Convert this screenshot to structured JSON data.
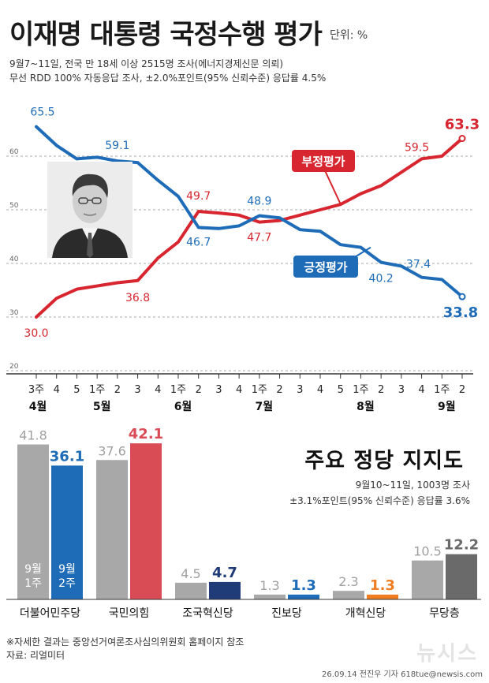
{
  "header": {
    "title": "이재명 대통령 국정수행 평가",
    "unit": "단위: %",
    "subtitle_1": "9월7~11일, 전국 만 18세 이상 2515명 조사(에너지경제신문 의뢰)",
    "subtitle_2": "무선 RDD 100% 자동응답 조사, ±2.0%포인트(95% 신뢰수준) 응답률 4.5%"
  },
  "chart_data": [
    {
      "type": "line",
      "y_ticks": [
        20,
        30,
        40,
        50,
        60
      ],
      "ylim": [
        20,
        70
      ],
      "x": [
        "3주",
        "4",
        "5",
        "1주",
        "2",
        "3",
        "4",
        "1주",
        "2",
        "3",
        "4",
        "1주",
        "2",
        "3",
        "4",
        "5",
        "1주",
        "2",
        "3",
        "4",
        "1주",
        "2"
      ],
      "month_labels": [
        {
          "label": "4월",
          "index": 0
        },
        {
          "label": "5월",
          "index": 3
        },
        {
          "label": "6월",
          "index": 7
        },
        {
          "label": "7월",
          "index": 11
        },
        {
          "label": "8월",
          "index": 16
        },
        {
          "label": "9월",
          "index": 20
        }
      ],
      "series": [
        {
          "name": "부정평가",
          "color": "#d7262f",
          "values": [
            30.0,
            33.5,
            35.2,
            35.8,
            36.4,
            36.8,
            41.0,
            44.0,
            49.7,
            49.4,
            49.0,
            47.7,
            48.0,
            49.0,
            50.0,
            51.0,
            53.0,
            54.5,
            57.0,
            59.5,
            60.0,
            63.3
          ],
          "data_labels": [
            {
              "index": 0,
              "text": "30.0"
            },
            {
              "index": 5,
              "text": "36.8"
            },
            {
              "index": 8,
              "text": "49.7"
            },
            {
              "index": 11,
              "text": "47.7"
            },
            {
              "index": 19,
              "text": "59.5"
            },
            {
              "index": 21,
              "text": "63.3"
            }
          ]
        },
        {
          "name": "긍정평가",
          "color": "#1e6cb7",
          "values": [
            65.5,
            62.0,
            59.5,
            59.8,
            59.1,
            58.8,
            55.5,
            52.5,
            46.7,
            46.5,
            47.0,
            48.9,
            48.5,
            46.3,
            46.0,
            43.5,
            43.0,
            40.2,
            39.5,
            37.4,
            37.0,
            33.8
          ],
          "data_labels": [
            {
              "index": 0,
              "text": "65.5"
            },
            {
              "index": 4,
              "text": "59.1"
            },
            {
              "index": 8,
              "text": "46.7"
            },
            {
              "index": 11,
              "text": "48.9"
            },
            {
              "index": 17,
              "text": "40.2"
            },
            {
              "index": 19,
              "text": "37.4"
            },
            {
              "index": 21,
              "text": "33.8"
            }
          ]
        }
      ]
    },
    {
      "type": "bar",
      "title": "주요 정당 지지도",
      "subtitle_1": "9월10~11일, 1003명 조사",
      "subtitle_2": "±3.1%포인트(95% 신뢰수준) 응답률 3.6%",
      "categories": [
        "더불어민주당",
        "국민의힘",
        "조국혁신당",
        "진보당",
        "개혁신당",
        "무당층"
      ],
      "series": [
        {
          "name": "9월 1주",
          "values": [
            41.8,
            37.6,
            4.5,
            1.3,
            2.3,
            10.5
          ],
          "labels": [
            "41.8",
            "37.6",
            "4.5",
            "1.3",
            "2.3",
            "10.5"
          ],
          "color": "#a8a8a8"
        },
        {
          "name": "9월 2주",
          "values": [
            36.1,
            42.1,
            4.7,
            1.3,
            1.3,
            12.2
          ],
          "labels": [
            "36.1",
            "42.1",
            "4.7",
            "1.3",
            "1.3",
            "12.2"
          ],
          "colors": [
            "#1e6cb7",
            "#d94b55",
            "#1f3c78",
            "#1e6cb7",
            "#ef7d22",
            "#6a6a6a"
          ]
        }
      ],
      "legend_in_bar": {
        "first": [
          "9월",
          "1주"
        ],
        "second": [
          "9월",
          "2주"
        ]
      }
    }
  ],
  "footer": {
    "note": "※자세한 결과는 중앙선거여론조사심의위원회 홈페이지 참조",
    "source": "자료: 리얼미터",
    "credit": "26.09.14 전진우 기자 618tue@newsis.com",
    "logo": "뉴시스"
  }
}
